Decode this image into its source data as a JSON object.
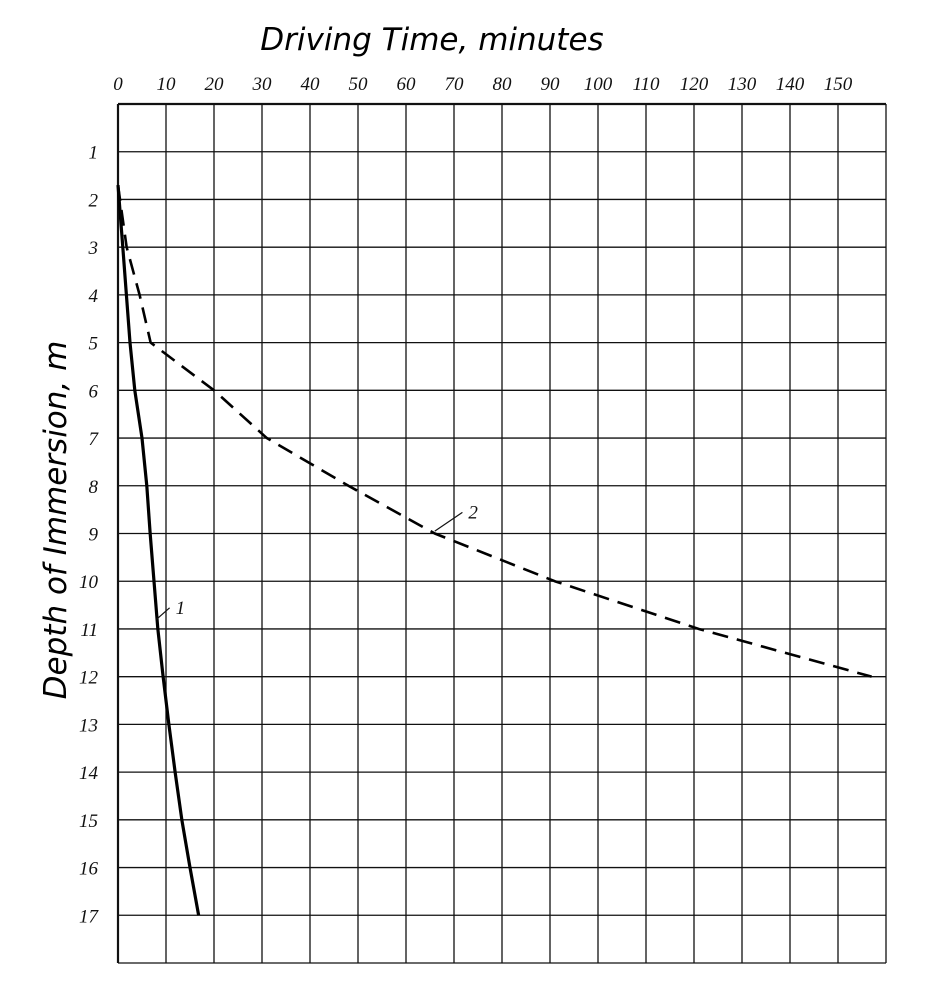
{
  "chart_data": {
    "type": "line",
    "title": "Driving Time, minutes",
    "xlabel": "Driving Time, minutes",
    "ylabel": "Depth of Immersion, m",
    "x_axis_position": "top",
    "y_axis_inverted": true,
    "xlim": [
      0,
      160
    ],
    "ylim": [
      0,
      18
    ],
    "x_ticks": [
      0,
      10,
      20,
      30,
      40,
      50,
      60,
      70,
      80,
      90,
      100,
      110,
      120,
      130,
      140,
      150
    ],
    "x_tick_labels": [
      "0",
      "10",
      "20",
      "30",
      "40",
      "50",
      "60",
      "70",
      "80",
      "90",
      "100",
      "110",
      "120",
      "130",
      "140",
      "150"
    ],
    "y_ticks": [
      1,
      2,
      3,
      4,
      5,
      6,
      7,
      8,
      9,
      10,
      11,
      12,
      13,
      14,
      15,
      16,
      17
    ],
    "y_tick_labels": [
      "1",
      "2",
      "3",
      "4",
      "5",
      "6",
      "7",
      "8",
      "9",
      "10",
      "11",
      "12",
      "13",
      "14",
      "15",
      "16",
      "17"
    ],
    "grid": true,
    "series": [
      {
        "name": "1",
        "style": "solid",
        "color": "#000000",
        "x": [
          0,
          1,
          2.5,
          3.5,
          5,
          6,
          6.7,
          7.5,
          8.3,
          9.4,
          10.6,
          11.9,
          13.3,
          15,
          16.8
        ],
        "y": [
          1.7,
          3,
          5,
          6,
          7,
          8,
          9,
          10,
          11,
          12,
          13,
          14,
          15,
          16,
          17
        ],
        "label_at": [
          12,
          10.6
        ],
        "label_points_to": [
          8,
          10.8
        ]
      },
      {
        "name": "2",
        "style": "dashed",
        "color": "#000000",
        "x": [
          0,
          1.8,
          4.5,
          6.8,
          20,
          31,
          48,
          66,
          91,
          121,
          157
        ],
        "y": [
          1.7,
          3,
          4,
          5,
          6,
          7,
          8,
          9,
          10,
          11,
          12
        ],
        "label_at": [
          73,
          8.6
        ],
        "label_points_to": [
          66,
          8.95
        ]
      }
    ]
  }
}
